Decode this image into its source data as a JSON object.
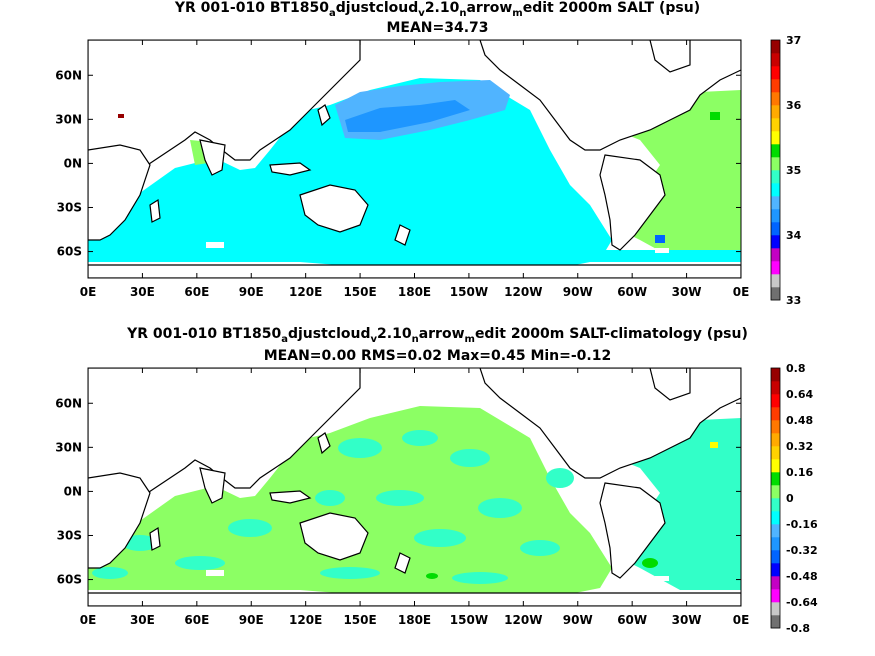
{
  "chart_data": [
    {
      "type": "heatmap",
      "title": "YR 001-010 BT1850_adjustcloud_v2.10_narrow_medit 2000m SALT (psu)",
      "title_parts": {
        "a": "YR 001-010 BT1850",
        "b": "a",
        "c": "djustcloud",
        "d": "v",
        "e": "2.10",
        "f": "n",
        "g": "arrow",
        "h": "m",
        "i": "edit 2000m SALT (psu)"
      },
      "subtitle": "MEAN=34.73",
      "x_ticks": [
        "0E",
        "30E",
        "60E",
        "90E",
        "120E",
        "150E",
        "180E",
        "150W",
        "120W",
        "90W",
        "60W",
        "30W",
        "0E"
      ],
      "y_ticks": [
        "60N",
        "30N",
        "0N",
        "30S",
        "60S"
      ],
      "colorbar": {
        "range": [
          33,
          37
        ],
        "tick_labels": [
          "37",
          "36",
          "35",
          "34",
          "33"
        ],
        "colors": [
          "#707070",
          "#c8c8c8",
          "#ff00ff",
          "#c400c4",
          "#0000ff",
          "#0064ff",
          "#1e96ff",
          "#50b4ff",
          "#00ffff",
          "#32ffc8",
          "#8cff64",
          "#00dc00",
          "#ffff00",
          "#ffd200",
          "#ffaa00",
          "#ff7800",
          "#ff3c00",
          "#ff0000",
          "#c80000",
          "#960000"
        ]
      },
      "fields": {
        "ocean": "#00ffff",
        "atlantic": "#8cff64",
        "north_pacific": "#50b4ff",
        "north_pacific_core": "#1e96ff",
        "land": "#ffffff",
        "coast": "#000000"
      }
    },
    {
      "type": "heatmap",
      "title": "YR 001-010 BT1850_adjustcloud_v2.10_narrow_medit 2000m SALT-climatology (psu)",
      "title_parts": {
        "a": "YR 001-010 BT1850",
        "b": "a",
        "c": "djustcloud",
        "d": "v",
        "e": "2.10",
        "f": "n",
        "g": "arrow",
        "h": "m",
        "i": "edit 2000m SALT-climatology (psu)"
      },
      "subtitle": "MEAN=0.00   RMS=0.02   Max=0.45   Min=-0.12",
      "stats": {
        "mean": 0.0,
        "rms": 0.02,
        "max": 0.45,
        "min": -0.12
      },
      "x_ticks": [
        "0E",
        "30E",
        "60E",
        "90E",
        "120E",
        "150E",
        "180E",
        "150W",
        "120W",
        "90W",
        "60W",
        "30W",
        "0E"
      ],
      "y_ticks": [
        "60N",
        "30N",
        "0N",
        "30S",
        "60S"
      ],
      "colorbar": {
        "range": [
          -0.8,
          0.8
        ],
        "tick_labels": [
          "0.8",
          "0.64",
          "0.48",
          "0.32",
          "0.16",
          "0",
          "-0.16",
          "-0.32",
          "-0.48",
          "-0.64",
          "-0.8"
        ],
        "colors": [
          "#707070",
          "#c8c8c8",
          "#ff00ff",
          "#c400c4",
          "#0000ff",
          "#0064ff",
          "#1e96ff",
          "#50b4ff",
          "#00ffff",
          "#32ffc8",
          "#8cff64",
          "#00dc00",
          "#ffff00",
          "#ffd200",
          "#ffaa00",
          "#ff7800",
          "#ff3c00",
          "#ff0000",
          "#c80000",
          "#960000"
        ]
      },
      "fields": {
        "ocean": "#8cff64",
        "ocean_low": "#32ffc8",
        "land": "#ffffff",
        "coast": "#000000"
      }
    }
  ]
}
